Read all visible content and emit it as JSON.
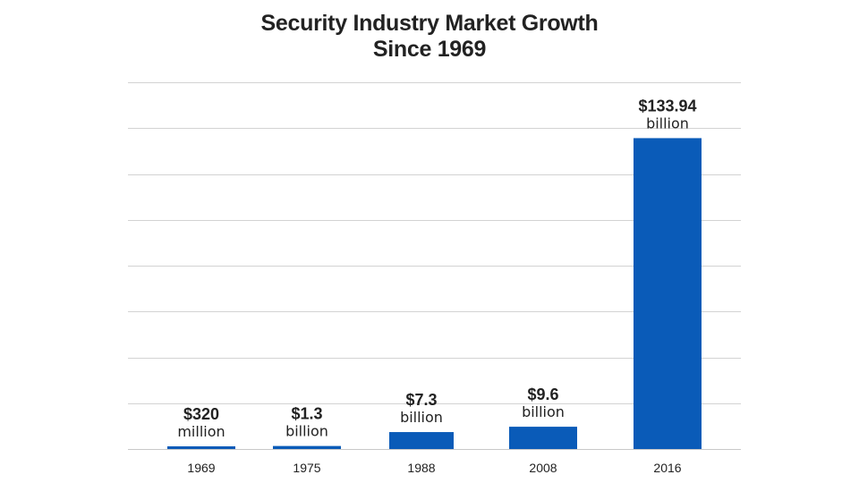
{
  "chart_data": {
    "type": "bar",
    "title_lines": [
      "Security Industry Market Growth",
      "Since 1969"
    ],
    "categories": [
      "1969",
      "1975",
      "1988",
      "2008",
      "2016"
    ],
    "values": [
      0.32,
      1.3,
      7.3,
      9.6,
      133.94
    ],
    "value_unit": "billion USD",
    "data_labels": [
      {
        "amount": "$320",
        "unit": "million"
      },
      {
        "amount": "$1.3",
        "unit": "billion"
      },
      {
        "amount": "$7.3",
        "unit": "billion"
      },
      {
        "amount": "$9.6",
        "unit": "billion"
      },
      {
        "amount": "$133.94",
        "unit": "billion"
      }
    ],
    "xlabel": "",
    "ylabel": "",
    "ylim": [
      0,
      158
    ],
    "gridline_count": 8,
    "grid": true,
    "legend": "none",
    "bar_color": "#0a5bb8"
  }
}
